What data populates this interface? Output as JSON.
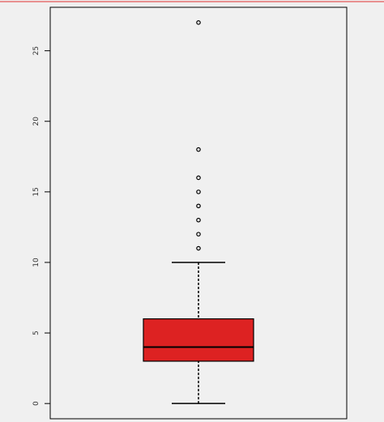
{
  "chart_data": {
    "type": "box",
    "box": {
      "whisker_low": 0,
      "q1": 3,
      "median": 4,
      "q3": 6,
      "whisker_high": 10,
      "outliers": [
        11,
        12,
        13,
        14,
        15,
        16,
        18,
        27
      ],
      "color": "#dd2222"
    },
    "ylim": [
      -1.08,
      28.08
    ],
    "yticks": [
      0,
      5,
      10,
      15,
      20,
      25
    ]
  }
}
